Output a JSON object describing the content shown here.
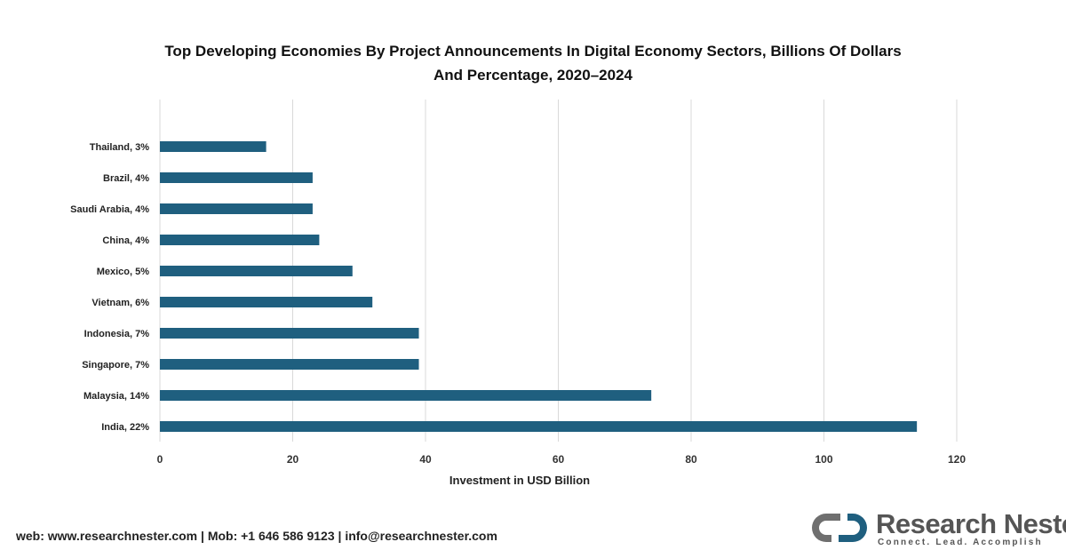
{
  "chart_data": {
    "type": "bar",
    "orientation": "horizontal",
    "title": [
      "Top Developing Economies By Project Announcements In Digital Economy Sectors, Billions Of Dollars",
      "And Percentage, 2020–2024"
    ],
    "xlabel": "Investment in USD Billion",
    "ylabel": "",
    "categories": [
      "Thailand, 3%",
      "Brazil, 4%",
      "Saudi Arabia, 4%",
      "China, 4%",
      "Mexico, 5%",
      "Vietnam, 6%",
      "Indonesia, 7%",
      "Singapore, 7%",
      "Malaysia, 14%",
      "India, 22%"
    ],
    "values": [
      16,
      23,
      23,
      24,
      29,
      32,
      39,
      39,
      74,
      114
    ],
    "xlim": [
      0,
      120
    ],
    "xticks": [
      "0",
      "20",
      "40",
      "60",
      "80",
      "100",
      "120"
    ],
    "grid": true,
    "bar_color": "#1f5f7f",
    "grid_color": "#d9d9d9"
  },
  "footer": {
    "contact": "web: www.researchnester.com | Mob: +1 646 586 9123 | info@researchnester.com"
  },
  "logo": {
    "name": "Research Nester",
    "tagline": "Connect. Lead. Accomplish"
  }
}
